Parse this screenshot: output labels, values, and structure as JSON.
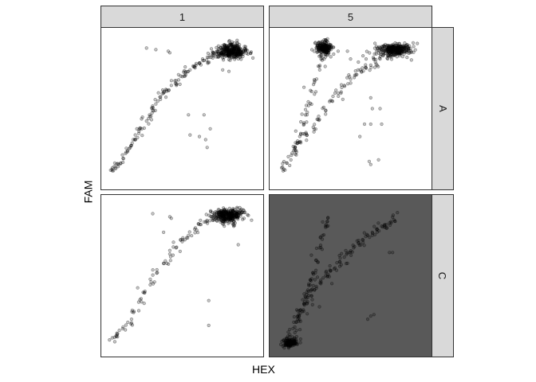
{
  "chart_data": {
    "type": "scatter",
    "xlabel": "HEX",
    "ylabel": "FAM",
    "facet_cols": [
      "1",
      "5"
    ],
    "facet_rows": [
      "A",
      "C"
    ],
    "xlim": [
      0,
      100
    ],
    "ylim": [
      0,
      100
    ],
    "grid": false,
    "point_color": "#000000",
    "strip_color": "#d9d9d9",
    "panels": [
      {
        "col": "1",
        "row": "A",
        "background": "#ffffff",
        "trails": [
          [
            [
              5,
              10
            ],
            [
              7,
              12
            ],
            [
              9,
              14
            ],
            [
              12,
              18
            ],
            [
              14,
              22
            ],
            [
              17,
              26
            ],
            [
              20,
              30
            ],
            [
              22,
              34
            ],
            [
              24,
              37
            ],
            [
              27,
              42
            ],
            [
              29,
              46
            ],
            [
              31,
              49
            ],
            [
              33,
              53
            ],
            [
              36,
              56
            ],
            [
              38,
              60
            ],
            [
              40,
              62
            ],
            [
              43,
              65
            ],
            [
              46,
              68
            ],
            [
              49,
              71
            ],
            [
              52,
              73
            ],
            [
              55,
              75
            ],
            [
              58,
              77
            ],
            [
              61,
              79
            ],
            [
              64,
              81
            ],
            [
              67,
              83
            ],
            [
              70,
              85
            ]
          ]
        ],
        "outliers": [
          [
            27,
            89
          ],
          [
            33,
            88
          ],
          [
            41,
            87
          ],
          [
            42,
            86
          ],
          [
            54,
            46
          ],
          [
            64,
            46
          ],
          [
            65,
            30
          ],
          [
            68,
            37
          ],
          [
            66,
            25
          ],
          [
            61,
            32
          ],
          [
            55,
            33
          ],
          [
            80,
            74
          ],
          [
            76,
            75
          ],
          [
            87,
            83
          ],
          [
            90,
            90
          ]
        ],
        "clusters": [
          {
            "center": [
              81,
              87
            ],
            "sd": [
              5,
              2.3
            ],
            "n": 320
          }
        ]
      },
      {
        "col": "5",
        "row": "A",
        "background": "#ffffff",
        "trails": [
          [
            [
              7,
              11
            ],
            [
              9,
              15
            ],
            [
              12,
              20
            ],
            [
              14,
              24
            ],
            [
              16,
              28
            ],
            [
              18,
              34
            ],
            [
              20,
              40
            ],
            [
              22,
              46
            ],
            [
              23,
              52
            ],
            [
              25,
              61
            ],
            [
              27,
              68
            ],
            [
              30,
              77
            ],
            [
              33,
              82
            ]
          ],
          [
            [
              15,
              23
            ],
            [
              18,
              28
            ],
            [
              22,
              33
            ],
            [
              26,
              38
            ],
            [
              30,
              43
            ],
            [
              34,
              49
            ],
            [
              38,
              55
            ],
            [
              42,
              60
            ],
            [
              46,
              65
            ],
            [
              50,
              69
            ],
            [
              54,
              72
            ],
            [
              57,
              74
            ],
            [
              60,
              76
            ],
            [
              63,
              78
            ],
            [
              66,
              80
            ],
            [
              69,
              82
            ],
            [
              71,
              84
            ],
            [
              75,
              86
            ]
          ]
        ],
        "outliers": [
          [
            42,
            87
          ],
          [
            48,
            87
          ],
          [
            50,
            82
          ],
          [
            55,
            80
          ],
          [
            58,
            84
          ],
          [
            60,
            82
          ],
          [
            65,
            82
          ],
          [
            63,
            57
          ],
          [
            64,
            50
          ],
          [
            70,
            40
          ],
          [
            69,
            50
          ],
          [
            59,
            40
          ],
          [
            63,
            40
          ],
          [
            62,
            16
          ],
          [
            63,
            14
          ],
          [
            68,
            17
          ],
          [
            56,
            32
          ],
          [
            40,
            60
          ],
          [
            45,
            56
          ]
        ],
        "clusters": [
          {
            "center": [
              33,
              89
            ],
            "sd": [
              2.6,
              2.3
            ],
            "n": 200
          },
          {
            "center": [
              78,
              88
            ],
            "sd": [
              5.5,
              2.2
            ],
            "n": 300
          }
        ]
      },
      {
        "col": "1",
        "row": "C",
        "background": "#ffffff",
        "trails": [
          [
            [
              5,
              10
            ],
            [
              8,
              13
            ],
            [
              12,
              17
            ],
            [
              15,
              20
            ],
            [
              19,
              27
            ],
            [
              22,
              33
            ],
            [
              26,
              40
            ],
            [
              30,
              46
            ],
            [
              34,
              52
            ],
            [
              38,
              58
            ],
            [
              42,
              64
            ],
            [
              46,
              68
            ],
            [
              50,
              72
            ],
            [
              54,
              76
            ],
            [
              58,
              80
            ],
            [
              62,
              83
            ],
            [
              66,
              85
            ],
            [
              70,
              87
            ]
          ]
        ],
        "outliers": [
          [
            31,
            90
          ],
          [
            42,
            88
          ],
          [
            43,
            87
          ],
          [
            67,
            34
          ],
          [
            67,
            18
          ],
          [
            86,
            70
          ],
          [
            84,
            84
          ],
          [
            77,
            82
          ],
          [
            38,
            78
          ],
          [
            49,
            73
          ]
        ],
        "clusters": [
          {
            "center": [
              80,
              89
            ],
            "sd": [
              5,
              2.2
            ],
            "n": 320
          }
        ]
      },
      {
        "col": "5",
        "row": "C",
        "background": "#595959",
        "trails": [
          [
            [
              11,
              12
            ],
            [
              13,
              16
            ],
            [
              15,
              20
            ],
            [
              17,
              24
            ],
            [
              18,
              28
            ],
            [
              20,
              32
            ],
            [
              21,
              36
            ],
            [
              23,
              40
            ],
            [
              24,
              44
            ],
            [
              25,
              48
            ],
            [
              26,
              52
            ],
            [
              28,
              60
            ],
            [
              30,
              68
            ],
            [
              32,
              76
            ],
            [
              34,
              82
            ],
            [
              35,
              85
            ]
          ],
          [
            [
              16,
              22
            ],
            [
              19,
              27
            ],
            [
              22,
              32
            ],
            [
              25,
              37
            ],
            [
              28,
              42
            ],
            [
              31,
              46
            ],
            [
              34,
              50
            ],
            [
              37,
              53
            ],
            [
              40,
              55
            ],
            [
              43,
              59
            ],
            [
              46,
              62
            ],
            [
              49,
              65
            ],
            [
              52,
              68
            ],
            [
              55,
              71
            ],
            [
              58,
              73
            ],
            [
              61,
              76
            ],
            [
              64,
              78
            ],
            [
              67,
              80
            ],
            [
              70,
              82
            ],
            [
              73,
              83
            ],
            [
              75,
              84
            ],
            [
              78,
              86
            ]
          ]
        ],
        "outliers": [
          [
            61,
            22
          ],
          [
            63,
            24
          ],
          [
            65,
            25
          ],
          [
            75,
            65
          ],
          [
            77,
            65
          ],
          [
            38,
            45
          ],
          [
            48,
            58
          ],
          [
            30,
            30
          ]
        ],
        "clusters": [
          {
            "center": [
              11,
              7
            ],
            "sd": [
              2.5,
              1.5
            ],
            "n": 120
          }
        ]
      }
    ]
  }
}
